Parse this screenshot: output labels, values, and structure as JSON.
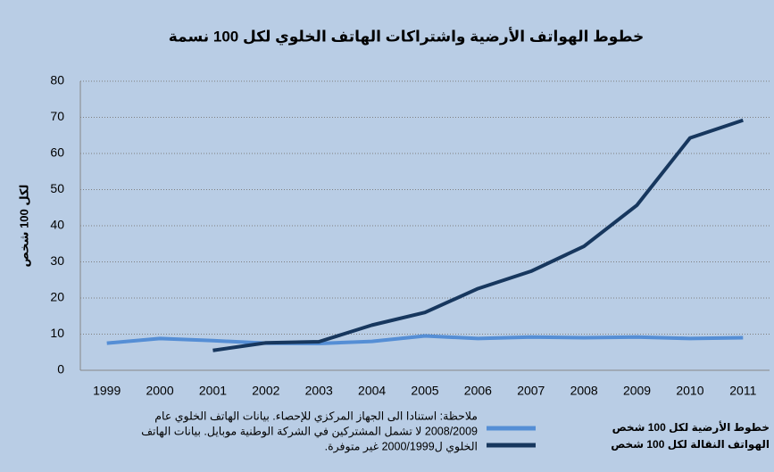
{
  "chart_data": {
    "type": "line",
    "title": "خطوط الهواتف الأرضية واشتراكات الهاتف الخلوي لكل 100 نسمة",
    "y_label": "لكل 100 شخص",
    "categories": [
      "1999",
      "2000",
      "2001",
      "2002",
      "2003",
      "2004",
      "2005",
      "2006",
      "2007",
      "2008",
      "2009",
      "2010",
      "2011"
    ],
    "series": [
      {
        "name": "خطوط الأرضية لكل 100 شخص",
        "color": "#558ed5",
        "values": [
          7.5,
          8.8,
          8.2,
          7.5,
          7.4,
          8,
          9.5,
          8.8,
          9.2,
          9,
          9.2,
          8.8,
          9
        ]
      },
      {
        "name": "الهواتف النقالة لكل 100 شخص",
        "color": "#17375e",
        "values": [
          null,
          null,
          5.5,
          7.6,
          7.9,
          12.5,
          16,
          22.6,
          27.4,
          34.3,
          45.7,
          64.3,
          69.2
        ]
      }
    ],
    "ylim": [
      0,
      80
    ],
    "yticks": [
      0,
      10,
      20,
      30,
      40,
      50,
      60,
      70,
      80
    ],
    "grid": true,
    "note": [
      "ملاحظة: استنادا الى الجهاز المركزي للإحصاء. بيانات الهاتف الخلوي عام",
      "2008/2009 لا تشمل المشتركين في الشركة الوطنية موبايل. بيانات الهاتف",
      "الخلوي ل2000/1999 غير متوفرة."
    ]
  }
}
